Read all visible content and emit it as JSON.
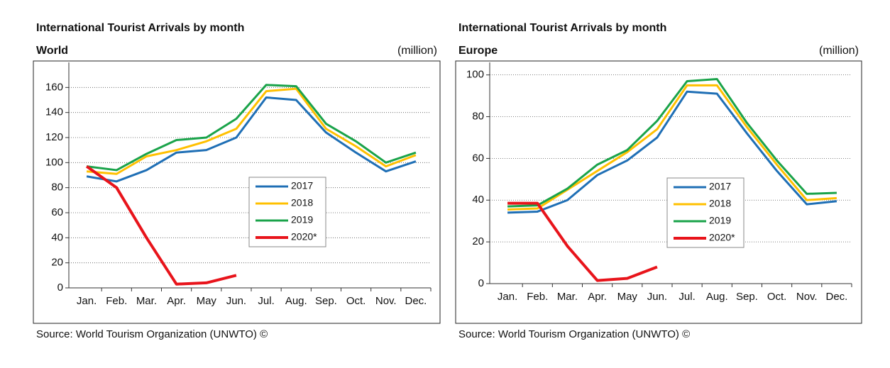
{
  "chart_data": [
    {
      "type": "line",
      "title": "International Tourist Arrivals by month",
      "subtitle": "World",
      "unit": "(million)",
      "source": "Source: World Tourism Organization (UNWTO) ©",
      "categories": [
        "Jan.",
        "Feb.",
        "Mar.",
        "Apr.",
        "May",
        "Jun.",
        "Jul.",
        "Aug.",
        "Sep.",
        "Oct.",
        "Nov.",
        "Dec."
      ],
      "ylim": [
        0,
        180
      ],
      "yticks": [
        0,
        20,
        40,
        60,
        80,
        100,
        120,
        140,
        160
      ],
      "grid": true,
      "series": [
        {
          "name": "2017",
          "color": "#1f6fb5",
          "values": [
            89,
            85,
            94,
            108,
            110,
            120,
            152,
            150,
            124,
            108,
            93,
            101
          ]
        },
        {
          "name": "2018",
          "color": "#ffc000",
          "values": [
            93,
            91,
            105,
            110,
            117,
            127,
            157,
            159,
            127,
            113,
            97,
            106
          ]
        },
        {
          "name": "2019",
          "color": "#1aa34a",
          "values": [
            97,
            94,
            107,
            118,
            120,
            135,
            162,
            161,
            131,
            117,
            100,
            108
          ]
        },
        {
          "name": "2020*",
          "color": "#e8141b",
          "values": [
            97,
            80,
            40,
            3,
            4,
            10,
            null,
            null,
            null,
            null,
            null,
            null
          ]
        }
      ]
    },
    {
      "type": "line",
      "title": "International Tourist Arrivals by month",
      "subtitle": "Europe",
      "unit": "(million)",
      "source": "Source: World Tourism Organization (UNWTO) ©",
      "categories": [
        "Jan.",
        "Feb.",
        "Mar.",
        "Apr.",
        "May",
        "Jun.",
        "Jul.",
        "Aug.",
        "Sep.",
        "Oct.",
        "Nov.",
        "Dec."
      ],
      "ylim": [
        0,
        106
      ],
      "yticks": [
        0,
        20,
        40,
        60,
        80,
        100
      ],
      "grid": true,
      "series": [
        {
          "name": "2017",
          "color": "#1f6fb5",
          "values": [
            34,
            34.5,
            40,
            52,
            59,
            70,
            92,
            91,
            72,
            54,
            38,
            39.5
          ]
        },
        {
          "name": "2018",
          "color": "#ffc000",
          "values": [
            35.5,
            36,
            45,
            54,
            63,
            74,
            95,
            95,
            75,
            57,
            40,
            41
          ]
        },
        {
          "name": "2019",
          "color": "#1aa34a",
          "values": [
            37,
            37.5,
            45.5,
            57,
            64,
            78,
            97,
            98,
            77,
            59,
            43,
            43.5
          ]
        },
        {
          "name": "2020*",
          "color": "#e8141b",
          "values": [
            38.5,
            38.5,
            18,
            1.5,
            2.5,
            8,
            null,
            null,
            null,
            null,
            null,
            null
          ]
        }
      ]
    }
  ]
}
